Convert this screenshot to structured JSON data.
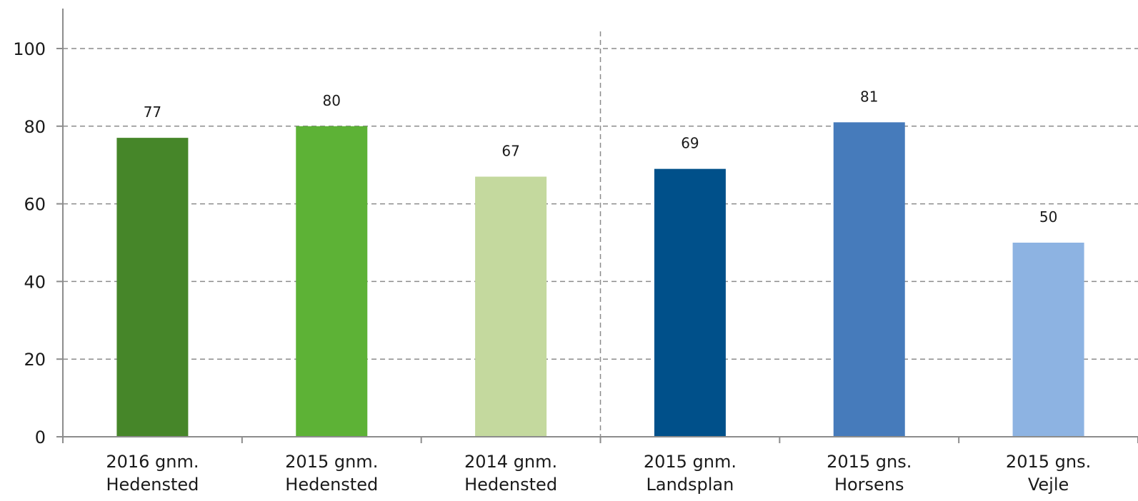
{
  "chart_data": {
    "type": "bar",
    "title": "",
    "xlabel": "",
    "ylabel": "",
    "ylim": [
      0,
      110
    ],
    "yticks": [
      0,
      20,
      40,
      60,
      80,
      100
    ],
    "grid": true,
    "legend": "none",
    "categories": [
      [
        "2016 gnm.",
        "Hedensted"
      ],
      [
        "2015 gnm.",
        "Hedensted"
      ],
      [
        "2014 gnm.",
        "Hedensted"
      ],
      [
        "2015 gnm.",
        "Landsplan"
      ],
      [
        "2015 gns.",
        "Horsens"
      ],
      [
        "2015 gns.",
        "Vejle"
      ]
    ],
    "values": [
      77,
      80,
      67,
      69,
      81,
      50
    ],
    "colors": [
      "#468629",
      "#5db236",
      "#c4d99e",
      "#00508a",
      "#467bbb",
      "#8db3e2"
    ],
    "divider_after_category_index": 2
  }
}
